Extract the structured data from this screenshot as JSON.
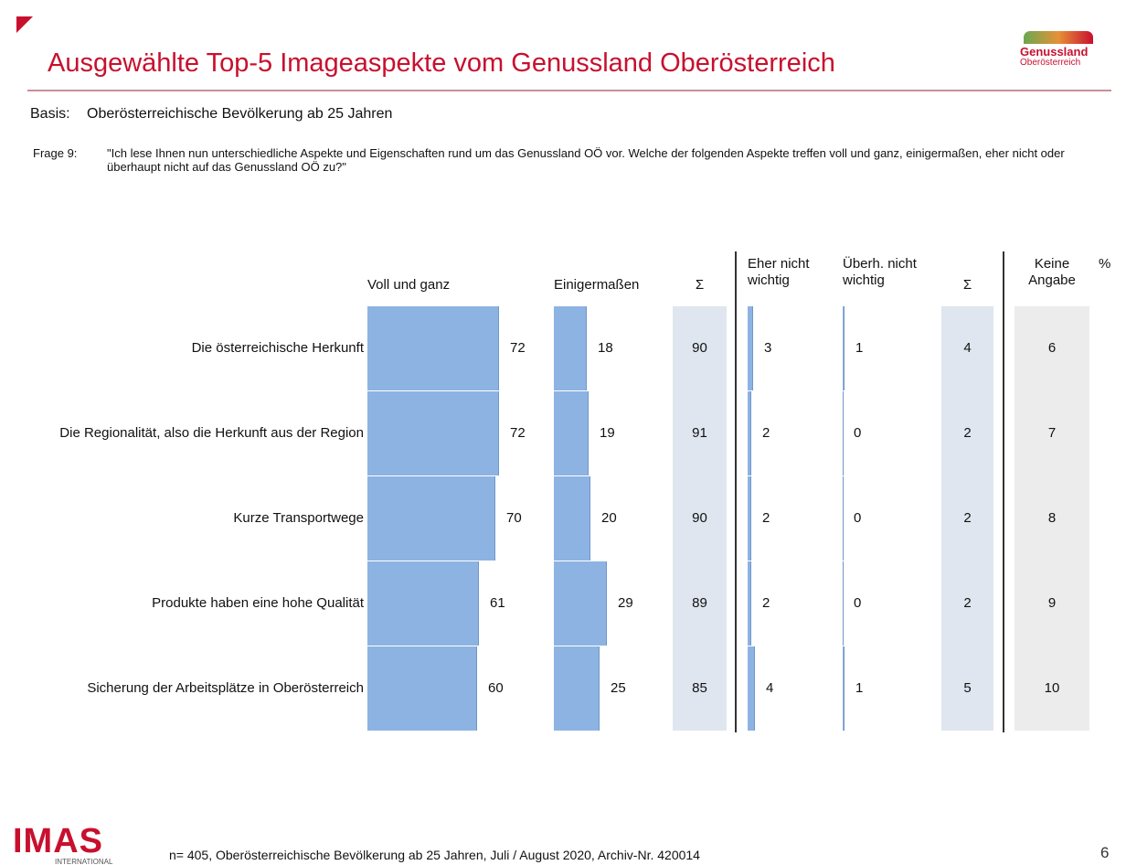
{
  "header": {
    "title": "Ausgewählte Top-5 Imageaspekte vom Genussland Oberösterreich",
    "logo": "Genussland",
    "logo_sub": "Oberösterreich"
  },
  "basis": {
    "label": "Basis:",
    "text": "Oberösterreichische Bevölkerung ab 25 Jahren"
  },
  "question": {
    "label": "Frage 9:",
    "text": "\"Ich lese Ihnen nun unterschiedliche Aspekte und Eigenschaften rund um das Genussland OÖ vor. Welche der folgenden Aspekte treffen voll und ganz, einigermaßen, eher nicht oder überhaupt nicht auf das Genussland OÖ zu?\""
  },
  "chart_data": {
    "type": "bar",
    "unit_label": "%",
    "categories": [
      "Die österreichische Herkunft",
      "Die Regionalität, also die Herkunft aus der Region",
      "Kurze Transportwege",
      "Produkte haben eine hohe Qualität",
      "Sicherung der Arbeitsplätze in Oberösterreich"
    ],
    "series": [
      {
        "name": "Voll und ganz",
        "color": "#8db3e2",
        "values": [
          72,
          72,
          70,
          61,
          60
        ]
      },
      {
        "name": "Einigermaßen",
        "color": "#8db3e2",
        "values": [
          18,
          19,
          20,
          29,
          25
        ]
      },
      {
        "name": "Σ",
        "background": "#dfe6ef",
        "values": [
          90,
          91,
          90,
          89,
          85
        ]
      },
      {
        "name": "Eher nicht\nwichtig",
        "color": "#8db3e2",
        "values": [
          3,
          2,
          2,
          2,
          4
        ]
      },
      {
        "name": "Überh. nicht\nwichtig",
        "color": "#8db3e2",
        "values": [
          1,
          0,
          0,
          0,
          1
        ]
      },
      {
        "name": "Σ",
        "background": "#dfe6ef",
        "values": [
          4,
          2,
          2,
          2,
          5
        ]
      },
      {
        "name": "Keine\nAngabe",
        "background": "#ececec",
        "values": [
          6,
          7,
          8,
          9,
          10
        ]
      }
    ]
  },
  "footer": {
    "logo": "IMAS",
    "logo_sub": "INTERNATIONAL",
    "note": "n= 405, Oberösterreichische Bevölkerung ab 25 Jahren, Juli / August 2020, Archiv-Nr. 420014",
    "page": "6"
  }
}
